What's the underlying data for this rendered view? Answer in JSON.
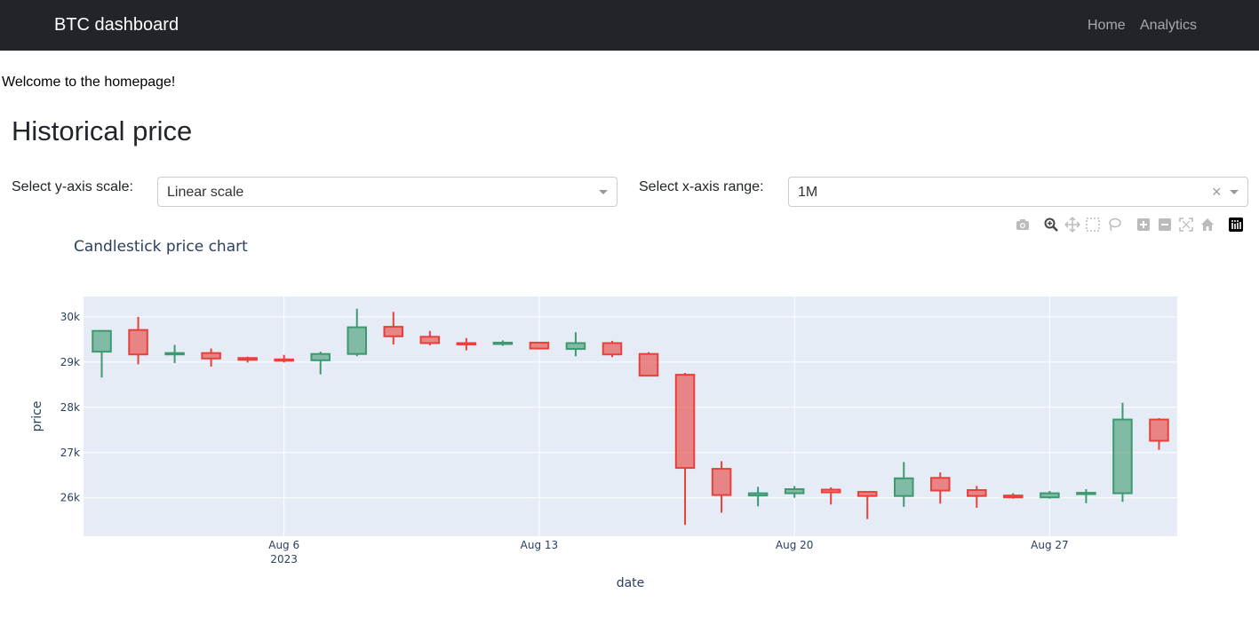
{
  "navbar": {
    "brand": "BTC dashboard",
    "links": [
      "Home",
      "Analytics"
    ]
  },
  "welcome": "Welcome to the homepage!",
  "page_title": "Historical price",
  "controls": {
    "y_scale_label": "Select y-axis scale:",
    "y_scale_value": "Linear scale",
    "x_range_label": "Select x-axis range:",
    "x_range_value": "1M",
    "clear_symbol": "×"
  },
  "modebar": [
    "camera-icon",
    "zoom-icon",
    "pan-icon",
    "box-select-icon",
    "lasso-select-icon",
    "zoom-in-icon",
    "zoom-out-icon",
    "autoscale-icon",
    "reset-axes-icon",
    "plotly-logo-icon"
  ],
  "chart_data": {
    "type": "candlestick",
    "title": "Candlestick price chart",
    "xlabel": "date",
    "ylabel": "price",
    "x_range": [
      "2023-07-31T12:00",
      "2023-08-30T12:00"
    ],
    "ylim": [
      25150,
      30450
    ],
    "y_ticks": [
      26000,
      27000,
      28000,
      29000,
      30000
    ],
    "y_tick_labels": [
      "26k",
      "27k",
      "28k",
      "29k",
      "30k"
    ],
    "x_ticks": [
      {
        "date": "2023-08-06",
        "label": "Aug 6",
        "sub": "2023"
      },
      {
        "date": "2023-08-13",
        "label": "Aug 13",
        "sub": ""
      },
      {
        "date": "2023-08-20",
        "label": "Aug 20",
        "sub": ""
      },
      {
        "date": "2023-08-27",
        "label": "Aug 27",
        "sub": ""
      }
    ],
    "colors": {
      "increasing": "#3d9970",
      "decreasing": "#e8403a",
      "grid": "#ffffff",
      "plot_bg": "#e5ecf6"
    },
    "candles": [
      {
        "date": "2023-08-01",
        "open": 29230,
        "high": 29690,
        "low": 28660,
        "close": 29690
      },
      {
        "date": "2023-08-02",
        "open": 29710,
        "high": 30000,
        "low": 28950,
        "close": 29170
      },
      {
        "date": "2023-08-03",
        "open": 29170,
        "high": 29380,
        "low": 28980,
        "close": 29200
      },
      {
        "date": "2023-08-04",
        "open": 29200,
        "high": 29300,
        "low": 28900,
        "close": 29080
      },
      {
        "date": "2023-08-05",
        "open": 29090,
        "high": 29120,
        "low": 28990,
        "close": 29050
      },
      {
        "date": "2023-08-06",
        "open": 29060,
        "high": 29160,
        "low": 28990,
        "close": 29040
      },
      {
        "date": "2023-08-07",
        "open": 29040,
        "high": 29230,
        "low": 28730,
        "close": 29180
      },
      {
        "date": "2023-08-08",
        "open": 29180,
        "high": 30180,
        "low": 29130,
        "close": 29770
      },
      {
        "date": "2023-08-09",
        "open": 29780,
        "high": 30110,
        "low": 29390,
        "close": 29570
      },
      {
        "date": "2023-08-10",
        "open": 29560,
        "high": 29690,
        "low": 29370,
        "close": 29420
      },
      {
        "date": "2023-08-11",
        "open": 29420,
        "high": 29530,
        "low": 29260,
        "close": 29400
      },
      {
        "date": "2023-08-12",
        "open": 29400,
        "high": 29480,
        "low": 29360,
        "close": 29430
      },
      {
        "date": "2023-08-13",
        "open": 29430,
        "high": 29450,
        "low": 29280,
        "close": 29300
      },
      {
        "date": "2023-08-14",
        "open": 29290,
        "high": 29660,
        "low": 29130,
        "close": 29420
      },
      {
        "date": "2023-08-15",
        "open": 29420,
        "high": 29470,
        "low": 29110,
        "close": 29170
      },
      {
        "date": "2023-08-16",
        "open": 29180,
        "high": 29220,
        "low": 28700,
        "close": 28700
      },
      {
        "date": "2023-08-17",
        "open": 28720,
        "high": 28760,
        "low": 25400,
        "close": 26660
      },
      {
        "date": "2023-08-18",
        "open": 26640,
        "high": 26810,
        "low": 25670,
        "close": 26060
      },
      {
        "date": "2023-08-19",
        "open": 26050,
        "high": 26240,
        "low": 25810,
        "close": 26100
      },
      {
        "date": "2023-08-20",
        "open": 26100,
        "high": 26260,
        "low": 26000,
        "close": 26190
      },
      {
        "date": "2023-08-21",
        "open": 26180,
        "high": 26230,
        "low": 25850,
        "close": 26120
      },
      {
        "date": "2023-08-22",
        "open": 26130,
        "high": 26140,
        "low": 25530,
        "close": 26040
      },
      {
        "date": "2023-08-23",
        "open": 26040,
        "high": 26790,
        "low": 25800,
        "close": 26430
      },
      {
        "date": "2023-08-24",
        "open": 26440,
        "high": 26560,
        "low": 25870,
        "close": 26160
      },
      {
        "date": "2023-08-25",
        "open": 26170,
        "high": 26260,
        "low": 25780,
        "close": 26040
      },
      {
        "date": "2023-08-26",
        "open": 26050,
        "high": 26100,
        "low": 25980,
        "close": 26010
      },
      {
        "date": "2023-08-27",
        "open": 26010,
        "high": 26150,
        "low": 25980,
        "close": 26100
      },
      {
        "date": "2023-08-28",
        "open": 26100,
        "high": 26190,
        "low": 25880,
        "close": 26110
      },
      {
        "date": "2023-08-29",
        "open": 26100,
        "high": 28100,
        "low": 25910,
        "close": 27730
      },
      {
        "date": "2023-08-30",
        "open": 27730,
        "high": 27760,
        "low": 27060,
        "close": 27260
      }
    ]
  }
}
